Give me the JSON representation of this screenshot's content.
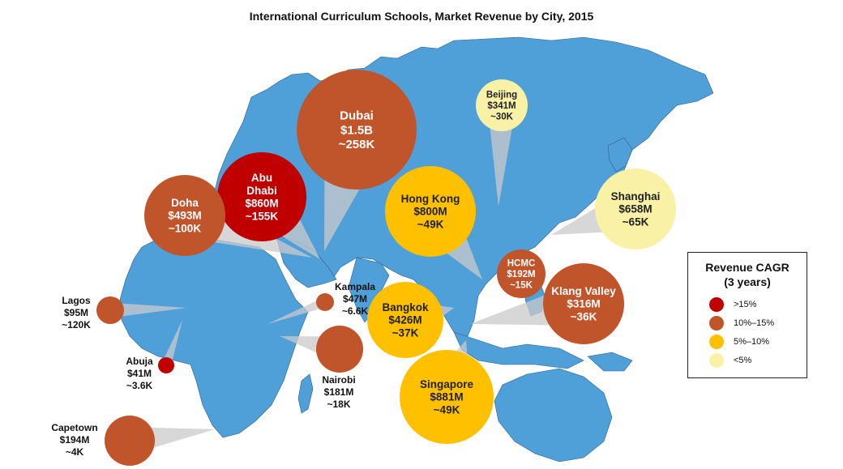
{
  "chart_data": {
    "type": "bubble-map",
    "title": "International Curriculum Schools, Market Revenue by City, 2015",
    "legend": {
      "title_line1": "Revenue CAGR",
      "title_line2": "(3 years)",
      "items": [
        {
          "label": ">15%",
          "color": "#c00000"
        },
        {
          "label": "10%–15%",
          "color": "#c0552b"
        },
        {
          "label": "5%–10%",
          "color": "#ffc000"
        },
        {
          "label": "<5%",
          "color": "#f9f1a5"
        }
      ]
    },
    "cities": [
      {
        "city": "Dubai",
        "revenue": "$1.5B",
        "revenue_usd_m": 1500,
        "students": "~258K",
        "cagr_band": "10%–15%"
      },
      {
        "city": "Abu Dhabi",
        "revenue": "$860M",
        "revenue_usd_m": 860,
        "students": "~155K",
        "cagr_band": ">15%"
      },
      {
        "city": "Doha",
        "revenue": "$493M",
        "revenue_usd_m": 493,
        "students": "~100K",
        "cagr_band": "10%–15%"
      },
      {
        "city": "Hong Kong",
        "revenue": "$800M",
        "revenue_usd_m": 800,
        "students": "~49K",
        "cagr_band": "5%–10%"
      },
      {
        "city": "Beijing",
        "revenue": "$341M",
        "revenue_usd_m": 341,
        "students": "~30K",
        "cagr_band": "<5%"
      },
      {
        "city": "Shanghai",
        "revenue": "$658M",
        "revenue_usd_m": 658,
        "students": "~65K",
        "cagr_band": "<5%"
      },
      {
        "city": "HCMC",
        "revenue": "$192M",
        "revenue_usd_m": 192,
        "students": "~15K",
        "cagr_band": "10%–15%"
      },
      {
        "city": "Klang Valley",
        "revenue": "$316M",
        "revenue_usd_m": 316,
        "students": "~36K",
        "cagr_band": "10%–15%"
      },
      {
        "city": "Bangkok",
        "revenue": "$426M",
        "revenue_usd_m": 426,
        "students": "~37K",
        "cagr_band": "5%–10%"
      },
      {
        "city": "Singapore",
        "revenue": "$881M",
        "revenue_usd_m": 881,
        "students": "~49K",
        "cagr_band": "5%–10%"
      },
      {
        "city": "Lagos",
        "revenue": "$95M",
        "revenue_usd_m": 95,
        "students": "~120K",
        "cagr_band": "10%–15%"
      },
      {
        "city": "Abuja",
        "revenue": "$41M",
        "revenue_usd_m": 41,
        "students": "~3.6K",
        "cagr_band": ">15%"
      },
      {
        "city": "Kampala",
        "revenue": "$47M",
        "revenue_usd_m": 47,
        "students": "~6.6K",
        "cagr_band": "10%–15%"
      },
      {
        "city": "Nairobi",
        "revenue": "$181M",
        "revenue_usd_m": 181,
        "students": "~18K",
        "cagr_band": "10%–15%"
      },
      {
        "city": "Capetown",
        "revenue": "$194M",
        "revenue_usd_m": 194,
        "students": "~4K",
        "cagr_band": "10%–15%"
      }
    ]
  },
  "colors": {
    "ocean": "#ffffff",
    "land": "#4f9fd9",
    "border": "#2f5f8a",
    "leader": "#c9c9c9"
  }
}
